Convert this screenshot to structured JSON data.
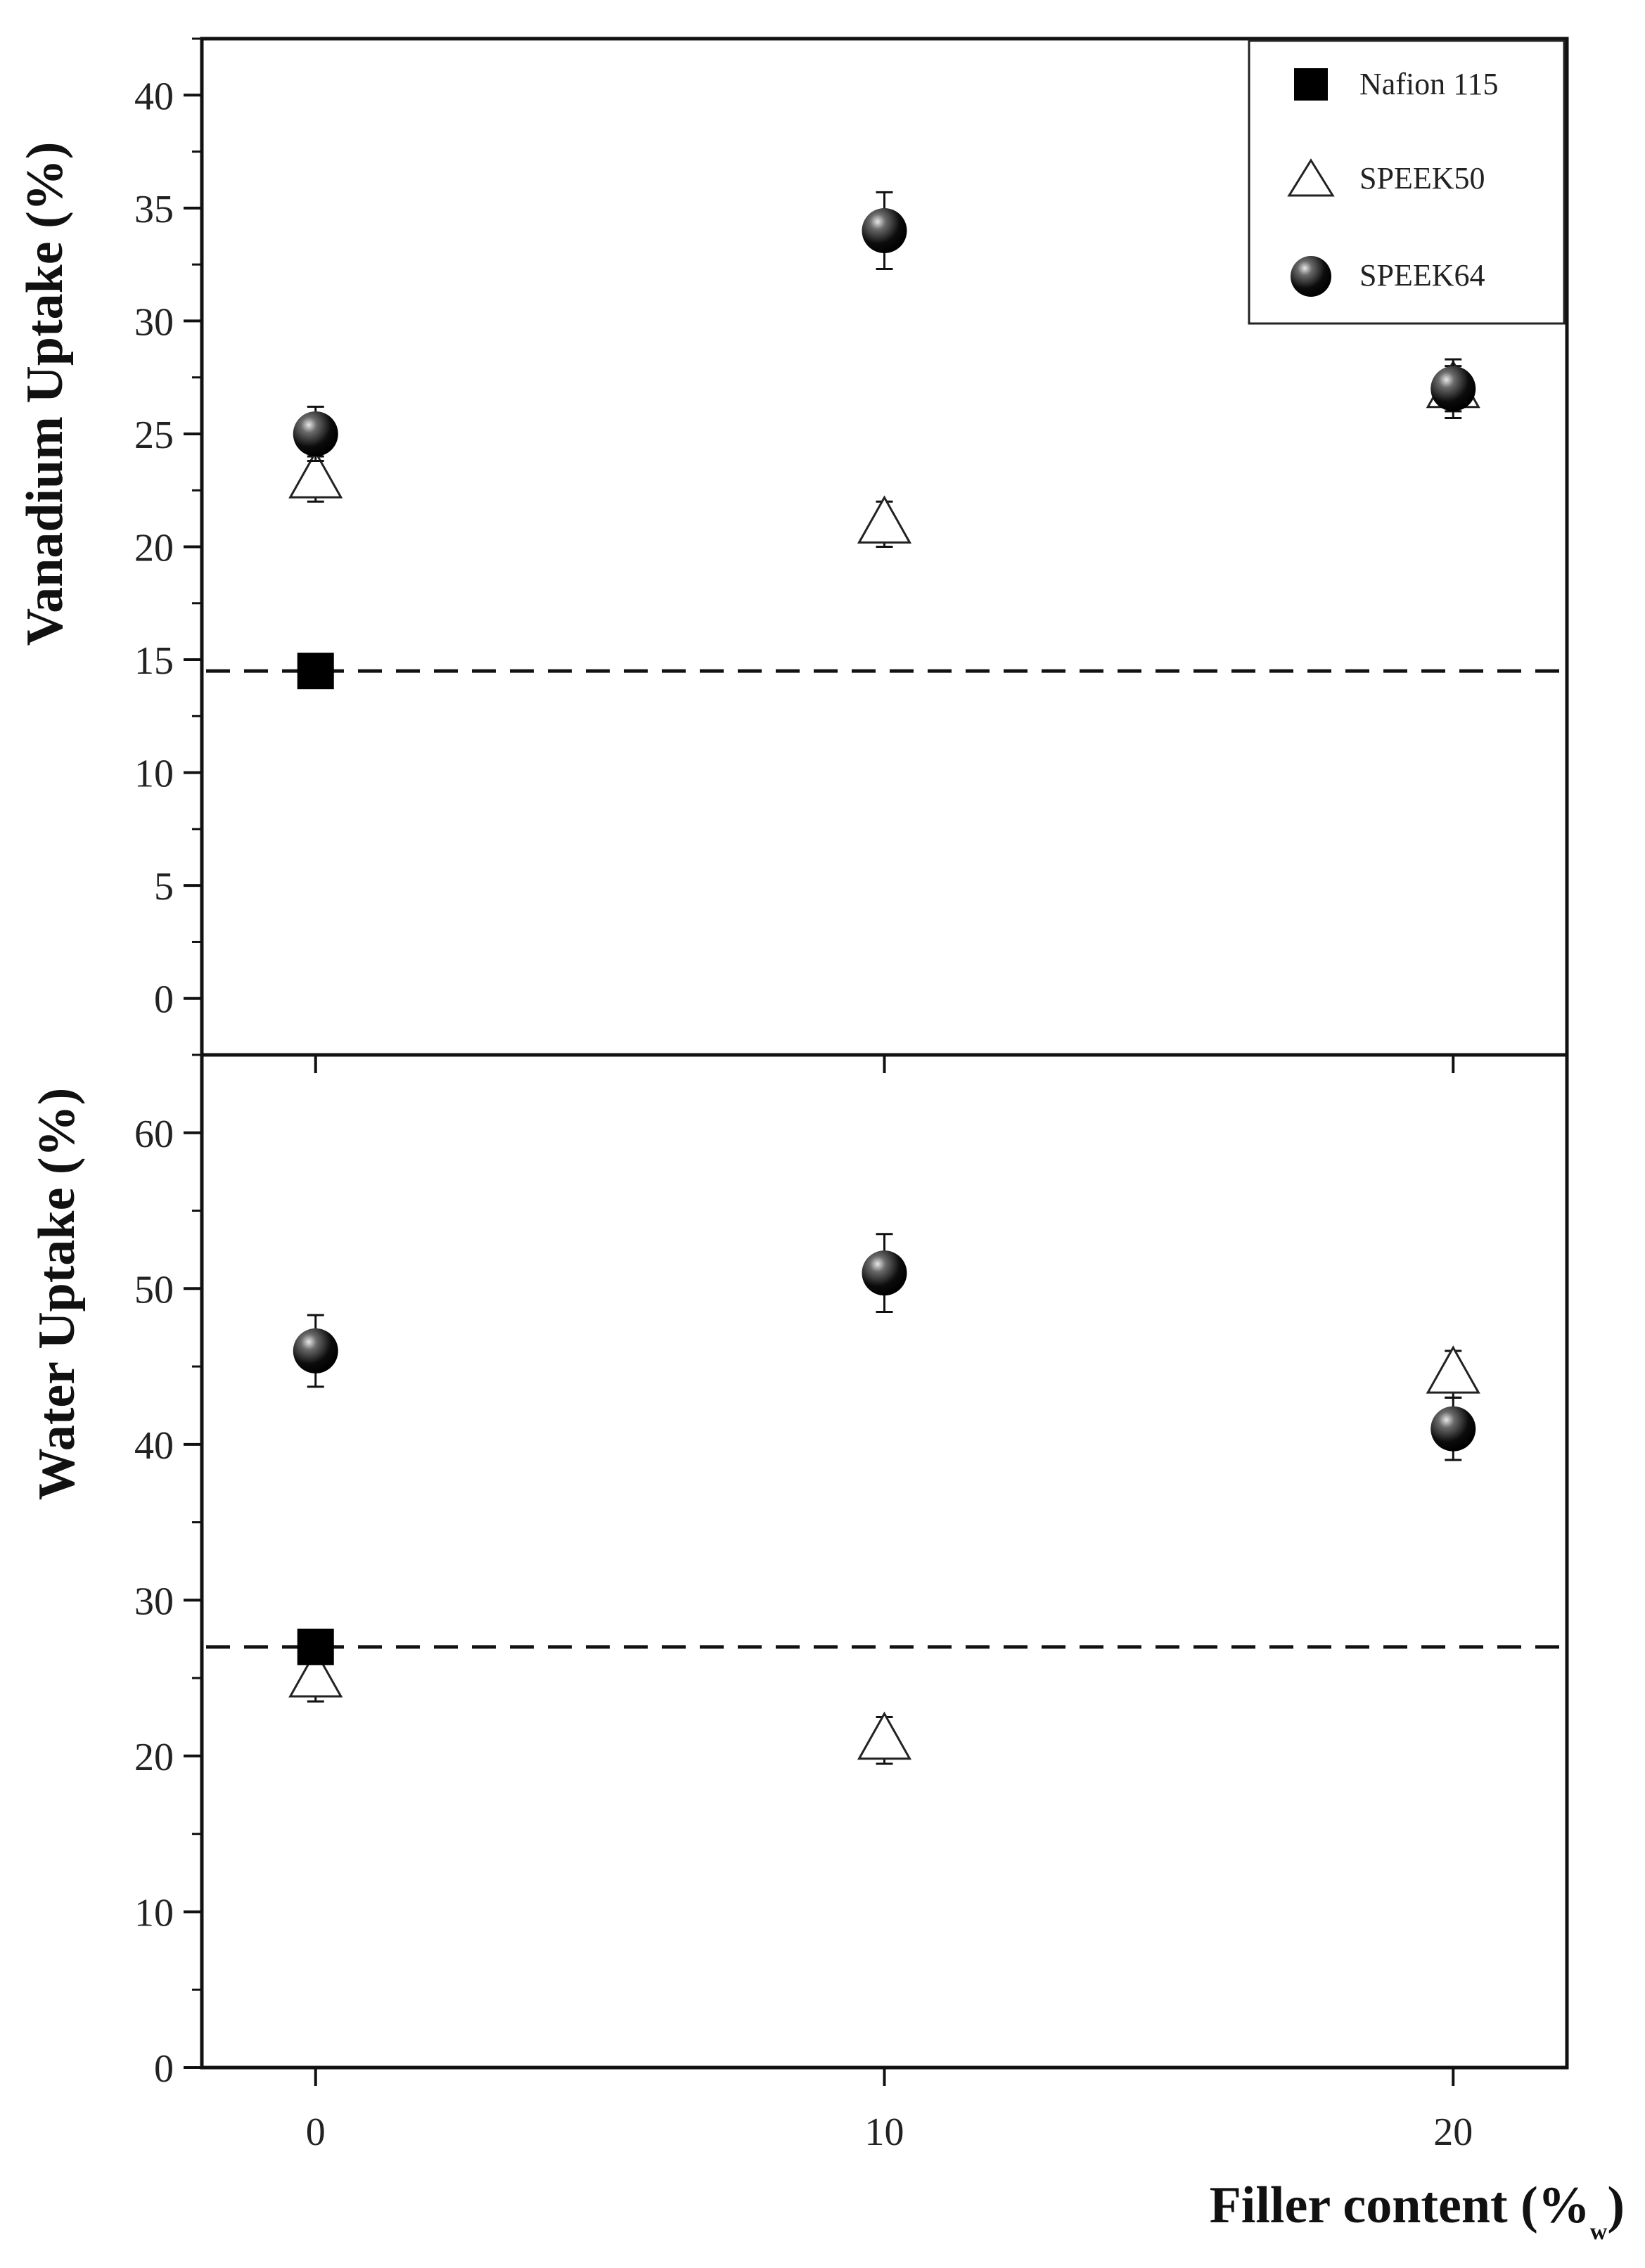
{
  "chart_data": [
    {
      "type": "scatter",
      "panel": "top",
      "ylabel": "Vanadium Uptake (%)",
      "xlabel": "",
      "xlim": [
        -2,
        22
      ],
      "ylim": [
        -2.5,
        42.5
      ],
      "yticks": [
        0,
        5,
        10,
        15,
        20,
        25,
        30,
        35,
        40
      ],
      "reference_line": {
        "series": "Nafion 115",
        "y": 14.5,
        "style": "dashed"
      },
      "series": [
        {
          "name": "Nafion 115",
          "marker": "square",
          "points": [
            {
              "x": 0,
              "y": 14.5,
              "err": 0.5
            }
          ]
        },
        {
          "name": "SPEEK50",
          "marker": "open-triangle",
          "points": [
            {
              "x": 0,
              "y": 23.0,
              "err": 1.0
            },
            {
              "x": 10,
              "y": 21.0,
              "err": 1.0
            },
            {
              "x": 20,
              "y": 27.0,
              "err": 1.0
            }
          ]
        },
        {
          "name": "SPEEK64",
          "marker": "sphere",
          "points": [
            {
              "x": 0,
              "y": 25.0,
              "err": 1.2
            },
            {
              "x": 10,
              "y": 34.0,
              "err": 1.7
            },
            {
              "x": 20,
              "y": 27.0,
              "err": 1.3
            }
          ]
        }
      ],
      "legend": {
        "placement": "top-right",
        "entries": [
          "Nafion 115",
          "SPEEK50",
          "SPEEK64"
        ]
      }
    },
    {
      "type": "scatter",
      "panel": "bottom",
      "ylabel": "Water Uptake (%)",
      "xlabel": "Filler content (%",
      "xlabel_subscript": "w",
      "xlabel_close": ")",
      "xlim": [
        -2,
        22
      ],
      "ylim": [
        0,
        65
      ],
      "yticks": [
        0,
        10,
        20,
        30,
        40,
        50,
        60
      ],
      "xticks": [
        0,
        10,
        20
      ],
      "reference_line": {
        "series": "Nafion 115",
        "y": 27.0,
        "style": "dashed"
      },
      "series": [
        {
          "name": "Nafion 115",
          "marker": "square",
          "points": [
            {
              "x": 0,
              "y": 27.0,
              "err": 0.5
            }
          ]
        },
        {
          "name": "SPEEK50",
          "marker": "open-triangle",
          "points": [
            {
              "x": 0,
              "y": 25.0,
              "err": 1.5
            },
            {
              "x": 10,
              "y": 21.0,
              "err": 1.5
            },
            {
              "x": 20,
              "y": 44.5,
              "err": 1.5
            }
          ]
        },
        {
          "name": "SPEEK64",
          "marker": "sphere",
          "points": [
            {
              "x": 0,
              "y": 46.0,
              "err": 2.3
            },
            {
              "x": 10,
              "y": 51.0,
              "err": 2.5
            },
            {
              "x": 20,
              "y": 41.0,
              "err": 2.0
            }
          ]
        }
      ]
    }
  ],
  "colors": {
    "axis": "#111111",
    "marker_fill": "#000000",
    "triangle_fill": "#ffffff"
  }
}
